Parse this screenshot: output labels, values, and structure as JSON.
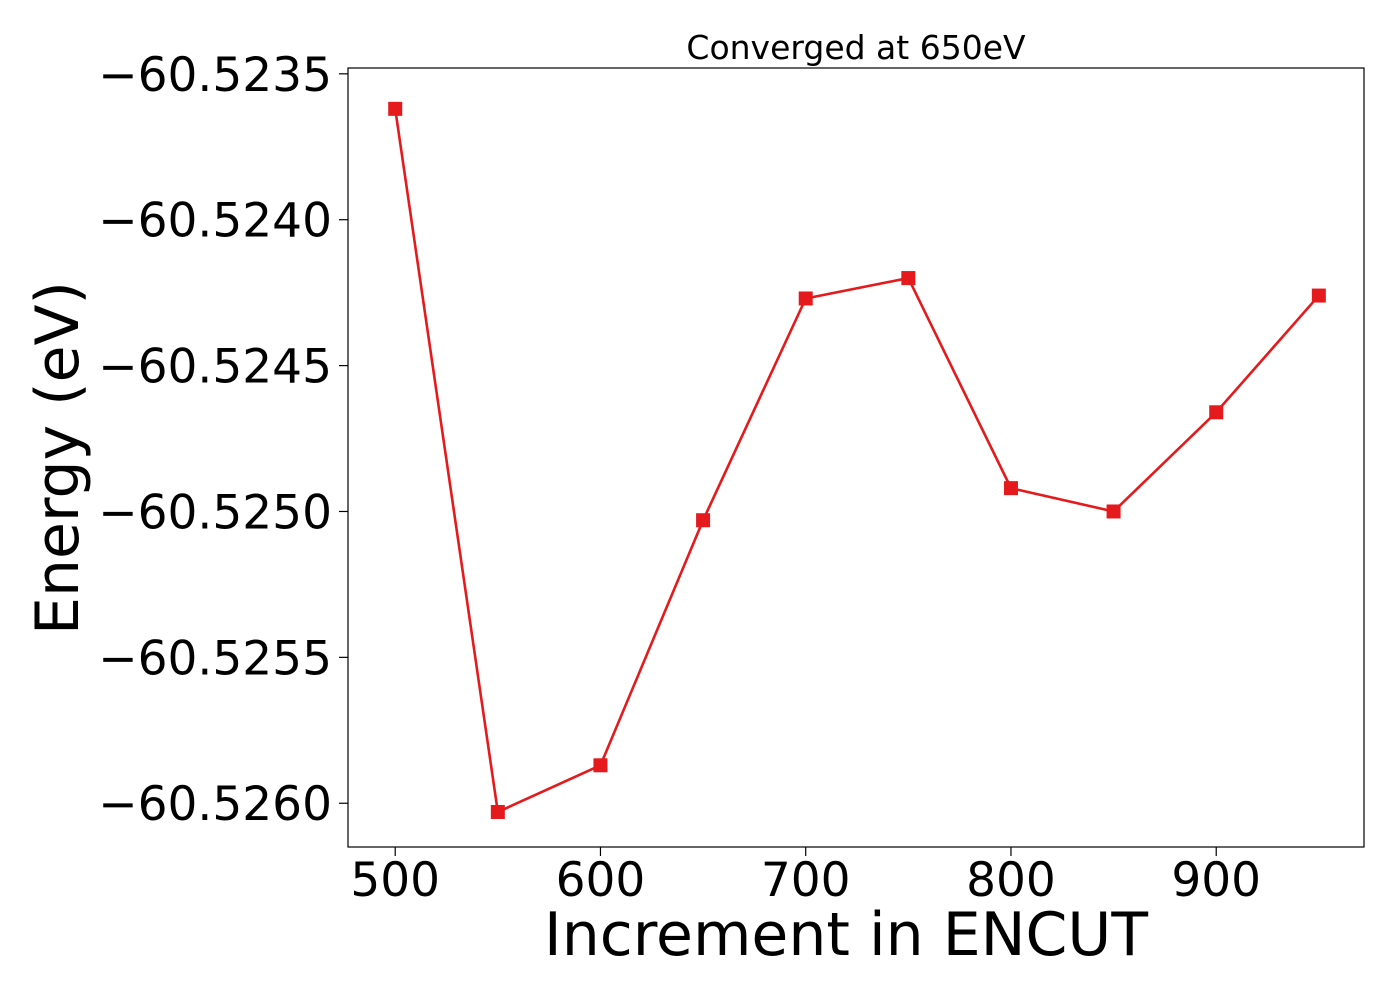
{
  "chart_data": {
    "type": "line",
    "title": "Converged at 650eV",
    "xlabel": "Increment in ENCUT",
    "ylabel": "Energy (eV)",
    "x": [
      500,
      550,
      600,
      650,
      700,
      750,
      800,
      850,
      900,
      950
    ],
    "series": [
      {
        "values": [
          -60.52362,
          -60.52603,
          -60.52587,
          -60.52503,
          -60.52427,
          -60.5242,
          -60.52492,
          -60.525,
          -60.52466,
          -60.52426
        ],
        "color": "#e41a1c",
        "marker": "square"
      }
    ],
    "xlim": [
      477,
      972
    ],
    "ylim": [
      -60.52615,
      -60.52348
    ],
    "xticks": [
      500,
      600,
      700,
      800,
      900
    ],
    "xtick_labels": [
      "500",
      "600",
      "700",
      "800",
      "900"
    ],
    "yticks": [
      -60.5235,
      -60.524,
      -60.5245,
      -60.525,
      -60.5255,
      -60.526
    ],
    "ytick_labels": [
      "−60.5235",
      "−60.5240",
      "−60.5245",
      "−60.5250",
      "−60.5255",
      "−60.5260"
    ],
    "grid": false,
    "legend": "none"
  }
}
